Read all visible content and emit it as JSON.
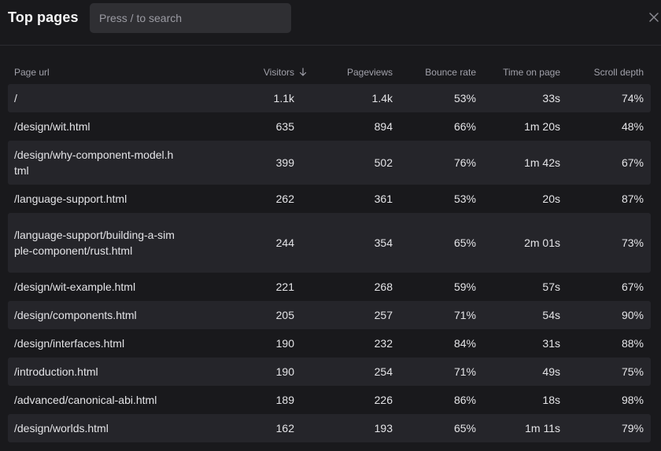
{
  "header": {
    "title": "Top pages",
    "search_placeholder": "Press / to search"
  },
  "table": {
    "columns": {
      "url": "Page url",
      "visitors": "Visitors",
      "pageviews": "Pageviews",
      "bounce": "Bounce rate",
      "time": "Time on page",
      "scroll": "Scroll depth"
    },
    "sort": {
      "column": "visitors",
      "direction": "descending",
      "icon": "arrow-down-icon"
    },
    "rows": [
      {
        "url": "/",
        "visitors": "1.1k",
        "pageviews": "1.4k",
        "bounce": "53%",
        "time": "33s",
        "scroll": "74%"
      },
      {
        "url": "/design/wit.html",
        "visitors": "635",
        "pageviews": "894",
        "bounce": "66%",
        "time": "1m 20s",
        "scroll": "48%"
      },
      {
        "url": "/design/why-component-model.html",
        "visitors": "399",
        "pageviews": "502",
        "bounce": "76%",
        "time": "1m 42s",
        "scroll": "67%"
      },
      {
        "url": "/language-support.html",
        "visitors": "262",
        "pageviews": "361",
        "bounce": "53%",
        "time": "20s",
        "scroll": "87%"
      },
      {
        "url": "/language-support/building-a-simple-component/rust.html",
        "visitors": "244",
        "pageviews": "354",
        "bounce": "65%",
        "time": "2m 01s",
        "scroll": "73%"
      },
      {
        "url": "/design/wit-example.html",
        "visitors": "221",
        "pageviews": "268",
        "bounce": "59%",
        "time": "57s",
        "scroll": "67%"
      },
      {
        "url": "/design/components.html",
        "visitors": "205",
        "pageviews": "257",
        "bounce": "71%",
        "time": "54s",
        "scroll": "90%"
      },
      {
        "url": "/design/interfaces.html",
        "visitors": "190",
        "pageviews": "232",
        "bounce": "84%",
        "time": "31s",
        "scroll": "88%"
      },
      {
        "url": "/introduction.html",
        "visitors": "190",
        "pageviews": "254",
        "bounce": "71%",
        "time": "49s",
        "scroll": "75%"
      },
      {
        "url": "/advanced/canonical-abi.html",
        "visitors": "189",
        "pageviews": "226",
        "bounce": "86%",
        "time": "18s",
        "scroll": "98%"
      },
      {
        "url": "/design/worlds.html",
        "visitors": "162",
        "pageviews": "193",
        "bounce": "65%",
        "time": "1m 11s",
        "scroll": "79%"
      }
    ]
  },
  "close_icon": "close-icon"
}
